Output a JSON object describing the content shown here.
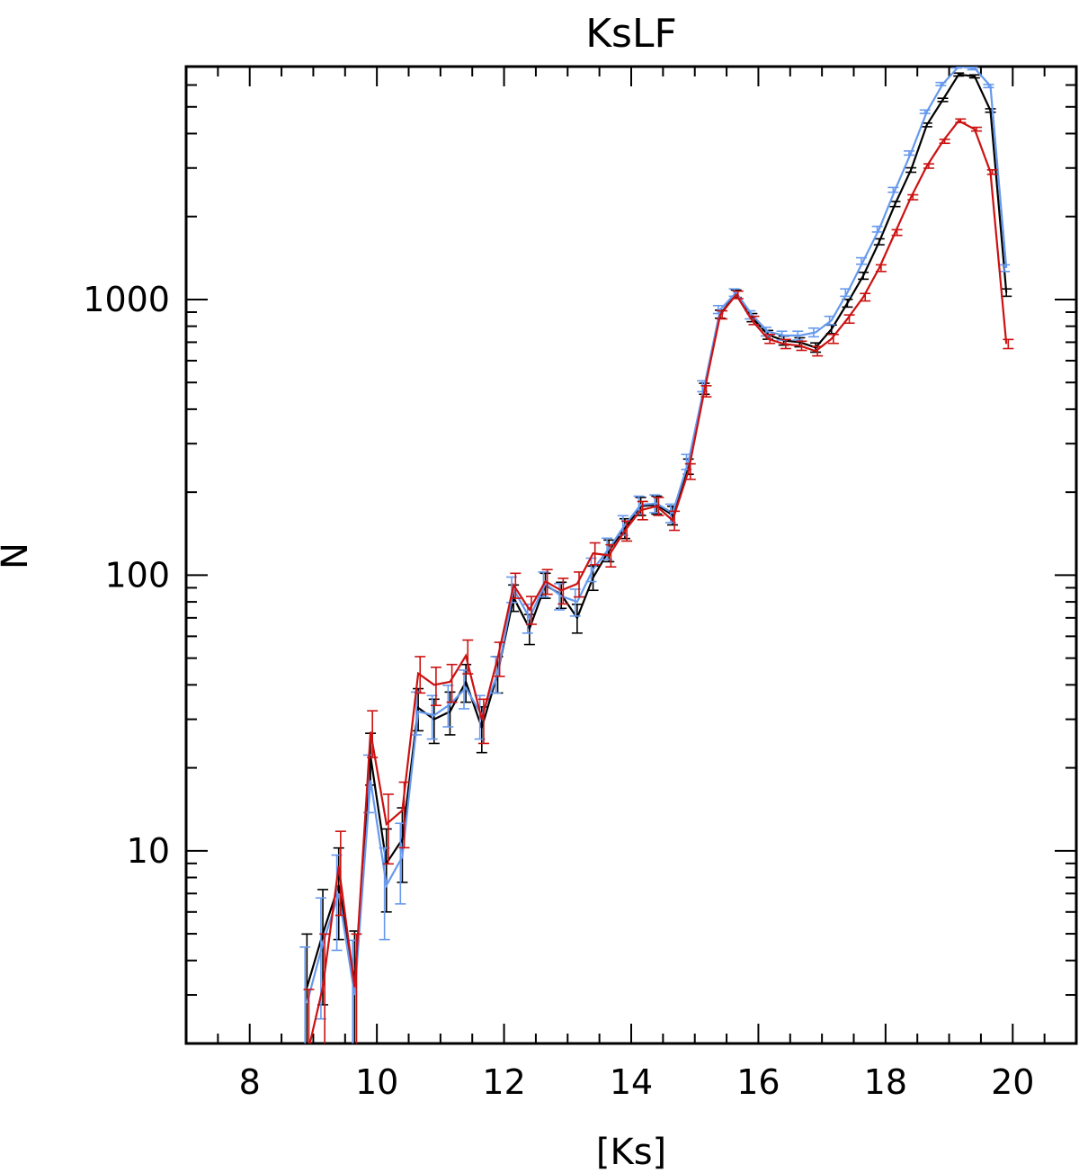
{
  "chart_data": {
    "type": "line",
    "title": "KsLF",
    "xlabel": "[Ks]",
    "ylabel": "N",
    "xlim": [
      7,
      21
    ],
    "ylim": [
      2,
      7000
    ],
    "yscale": "log",
    "grid": false,
    "xticks": [
      8,
      10,
      12,
      14,
      16,
      18,
      20
    ],
    "xtick_labels": [
      "8",
      "10",
      "12",
      "14",
      "16",
      "18",
      "20"
    ],
    "yticks": [
      10,
      100,
      1000
    ],
    "ytick_labels": [
      "10",
      "100",
      "1000"
    ],
    "x": [
      8.9,
      9.15,
      9.4,
      9.65,
      9.9,
      10.15,
      10.4,
      10.65,
      10.9,
      11.15,
      11.4,
      11.65,
      11.9,
      12.15,
      12.4,
      12.65,
      12.9,
      13.15,
      13.4,
      13.65,
      13.9,
      14.15,
      14.4,
      14.65,
      14.9,
      15.15,
      15.4,
      15.65,
      15.9,
      16.15,
      16.4,
      16.65,
      16.9,
      17.15,
      17.4,
      17.65,
      17.9,
      18.15,
      18.4,
      18.65,
      18.9,
      19.15,
      19.4,
      19.65,
      19.9
    ],
    "series": [
      {
        "color": "#000000",
        "values": [
          3.2,
          5,
          7.5,
          3.3,
          22,
          9,
          11,
          33,
          30,
          32,
          41,
          28,
          44,
          83,
          64,
          92,
          85,
          70,
          98,
          123,
          148,
          178,
          180,
          165,
          248,
          475,
          885,
          1050,
          860,
          745,
          710,
          700,
          670,
          780,
          970,
          1220,
          1620,
          2220,
          2950,
          4300,
          5300,
          6550,
          6450,
          4850,
          1060
        ]
      },
      {
        "color": "#6699ee",
        "values": [
          2.8,
          4.6,
          7,
          3,
          18,
          7.5,
          9.5,
          32,
          31,
          34,
          39,
          31,
          44,
          89,
          70,
          93,
          84,
          80,
          105,
          125,
          152,
          180,
          182,
          168,
          258,
          485,
          920,
          1060,
          880,
          765,
          740,
          740,
          760,
          840,
          1060,
          1380,
          1800,
          2500,
          3400,
          4800,
          6050,
          7000,
          6900,
          5950,
          1300
        ]
      },
      {
        "color": "#cc1111",
        "values": [
          1.8,
          3.2,
          8.8,
          3.2,
          27,
          12.5,
          14,
          44,
          40,
          41,
          51,
          30,
          50,
          92,
          75,
          95,
          88,
          93,
          120,
          118,
          145,
          172,
          178,
          158,
          238,
          465,
          880,
          1040,
          840,
          720,
          690,
          680,
          650,
          720,
          850,
          1020,
          1300,
          1750,
          2350,
          3050,
          3750,
          4450,
          4150,
          2900,
          690
        ]
      }
    ]
  }
}
